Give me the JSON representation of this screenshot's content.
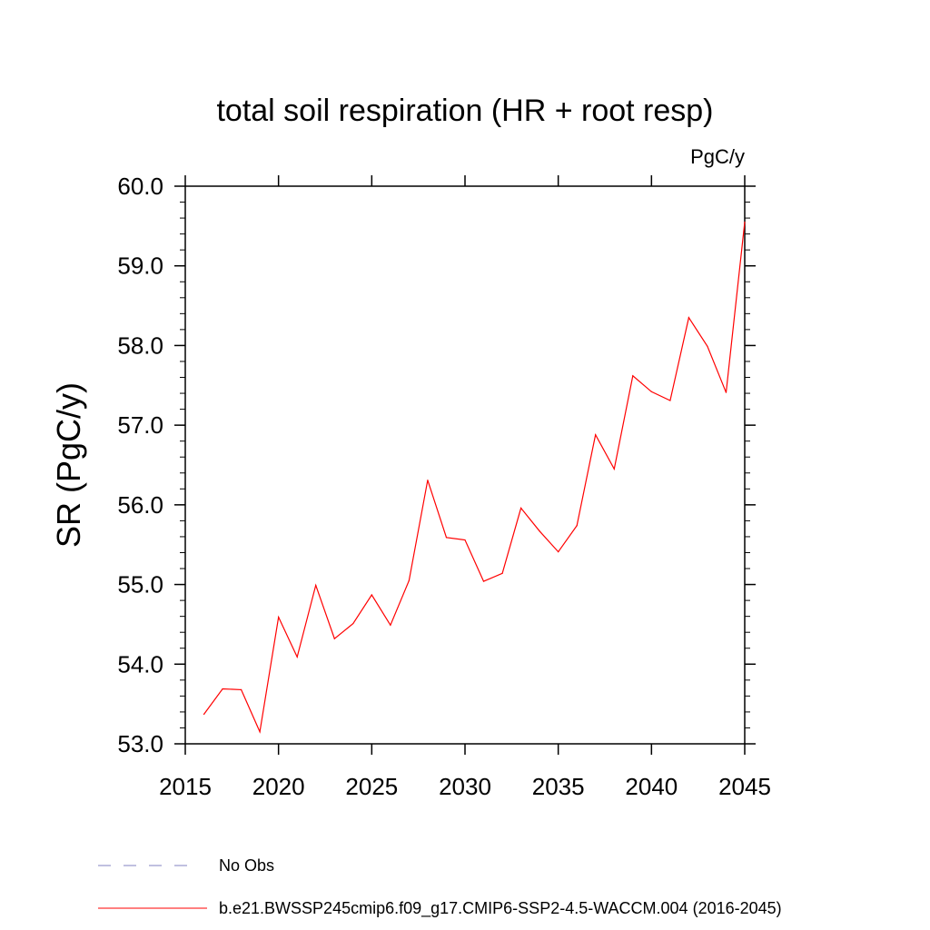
{
  "chart_data": {
    "type": "line",
    "title": "total soil respiration (HR + root resp)",
    "units": "PgC/y",
    "xlabel": "",
    "ylabel": "SR  (PgC/y)",
    "xlim": [
      2015,
      2045
    ],
    "ylim": [
      53.0,
      60.0
    ],
    "x_ticks": [
      2015,
      2020,
      2025,
      2030,
      2035,
      2040,
      2045
    ],
    "x_tick_labels": [
      "2015",
      "2020",
      "2025",
      "2030",
      "2035",
      "2040",
      "2045"
    ],
    "y_ticks": [
      53.0,
      54.0,
      55.0,
      56.0,
      57.0,
      58.0,
      59.0,
      60.0
    ],
    "y_tick_labels": [
      "53.0",
      "54.0",
      "55.0",
      "56.0",
      "57.0",
      "58.0",
      "59.0",
      "60.0"
    ],
    "x": [
      2016,
      2017,
      2018,
      2019,
      2020,
      2021,
      2022,
      2023,
      2024,
      2025,
      2026,
      2027,
      2028,
      2029,
      2030,
      2031,
      2032,
      2033,
      2034,
      2035,
      2036,
      2037,
      2038,
      2039,
      2040,
      2041,
      2042,
      2043,
      2044,
      2045
    ],
    "series": [
      {
        "name": "b.e21.BWSSP245cmip6.f09_g17.CMIP6-SSP2-4.5-WACCM.004 (2016-2045)",
        "color": "#ff0000",
        "values": [
          53.37,
          53.69,
          53.68,
          53.15,
          54.59,
          54.09,
          54.99,
          54.32,
          54.51,
          54.87,
          54.49,
          55.05,
          56.31,
          55.59,
          55.56,
          55.04,
          55.14,
          55.96,
          55.67,
          55.41,
          55.74,
          56.88,
          56.45,
          57.62,
          57.42,
          57.31,
          58.35,
          57.99,
          57.41,
          59.55
        ]
      }
    ],
    "legend": [
      {
        "label": "No Obs",
        "style": "dashed",
        "color": "#8080c0"
      },
      {
        "label": "b.e21.BWSSP245cmip6.f09_g17.CMIP6-SSP2-4.5-WACCM.004 (2016-2045)",
        "style": "solid",
        "color": "#ff0000"
      }
    ],
    "legend_position": "bottom-left"
  }
}
